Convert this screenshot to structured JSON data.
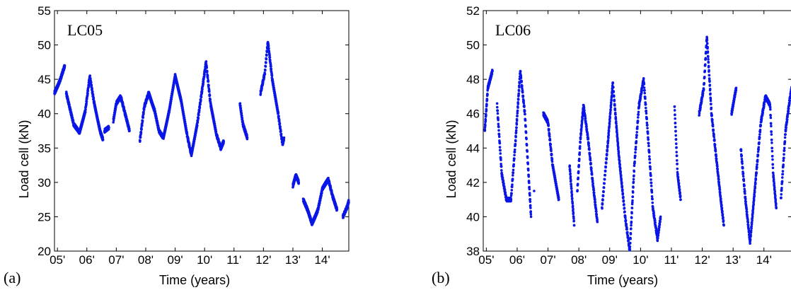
{
  "chart_data": [
    {
      "type": "scatter",
      "panel_label": "(a)",
      "series_label": "LC05",
      "xlabel": "Time (years)",
      "ylabel": "Load cell (kN)",
      "ylim": [
        20,
        55
      ],
      "xlim": [
        2004.9,
        2014.9
      ],
      "yticks": [
        20,
        25,
        30,
        35,
        40,
        45,
        50,
        55
      ],
      "xticks": [
        {
          "value": 2005,
          "label": "05'"
        },
        {
          "value": 2006,
          "label": "06'"
        },
        {
          "value": 2007,
          "label": "07'"
        },
        {
          "value": 2008,
          "label": "08'"
        },
        {
          "value": 2009,
          "label": "09'"
        },
        {
          "value": 2010,
          "label": "10'"
        },
        {
          "value": 2011,
          "label": "11'"
        },
        {
          "value": 2012,
          "label": "12'"
        },
        {
          "value": 2013,
          "label": "13'"
        },
        {
          "value": 2014,
          "label": "14'"
        }
      ],
      "grid": false,
      "color": "#0a16e6",
      "segments": [
        [
          [
            2004.9,
            43.0
          ],
          [
            2005.1,
            45.0
          ],
          [
            2005.25,
            47.0
          ]
        ],
        [
          [
            2005.3,
            43.0
          ],
          [
            2005.55,
            38.5
          ],
          [
            2005.75,
            37.2
          ],
          [
            2005.95,
            40.5
          ],
          [
            2006.1,
            45.5
          ],
          [
            2006.25,
            41.5
          ],
          [
            2006.45,
            37.5
          ],
          [
            2006.55,
            36.2
          ]
        ],
        [
          [
            2006.6,
            37.5
          ],
          [
            2006.75,
            38.0
          ]
        ],
        [
          [
            2006.9,
            39.0
          ],
          [
            2007.0,
            41.5
          ],
          [
            2007.15,
            42.5
          ],
          [
            2007.3,
            40.0
          ],
          [
            2007.45,
            37.5
          ]
        ],
        [
          [
            2007.8,
            36.0
          ],
          [
            2007.95,
            41.0
          ],
          [
            2008.1,
            43.0
          ],
          [
            2008.3,
            40.5
          ],
          [
            2008.45,
            37.5
          ],
          [
            2008.6,
            36.5
          ],
          [
            2008.8,
            40.5
          ],
          [
            2009.0,
            45.5
          ],
          [
            2009.2,
            42.0
          ],
          [
            2009.4,
            37.0
          ],
          [
            2009.55,
            34.0
          ],
          [
            2009.75,
            38.5
          ],
          [
            2009.9,
            43.0
          ],
          [
            2010.05,
            47.5
          ],
          [
            2010.2,
            41.5
          ],
          [
            2010.4,
            37.0
          ],
          [
            2010.55,
            35.0
          ],
          [
            2010.65,
            36.0
          ]
        ],
        [
          [
            2011.2,
            41.5
          ],
          [
            2011.3,
            38.5
          ],
          [
            2011.45,
            36.5
          ]
        ],
        [
          [
            2011.9,
            43.0
          ],
          [
            2012.05,
            46.0
          ],
          [
            2012.15,
            50.5
          ],
          [
            2012.3,
            45.0
          ],
          [
            2012.5,
            40.0
          ],
          [
            2012.65,
            35.5
          ],
          [
            2012.7,
            36.5
          ]
        ],
        [
          [
            2013.0,
            29.5
          ],
          [
            2013.1,
            31.0
          ],
          [
            2013.2,
            30.0
          ]
        ],
        [
          [
            2013.35,
            27.5
          ],
          [
            2013.5,
            26.0
          ],
          [
            2013.65,
            24.0
          ],
          [
            2013.85,
            26.0
          ],
          [
            2014.0,
            29.0
          ],
          [
            2014.2,
            30.5
          ],
          [
            2014.35,
            28.0
          ],
          [
            2014.5,
            26.0
          ]
        ],
        [
          [
            2014.7,
            25.0
          ],
          [
            2014.85,
            26.5
          ],
          [
            2014.95,
            28.0
          ]
        ]
      ]
    },
    {
      "type": "scatter",
      "panel_label": "(b)",
      "series_label": "LC06",
      "xlabel": "Time (years)",
      "ylabel": "Load cell (kN)",
      "ylim": [
        38,
        52
      ],
      "xlim": [
        2004.9,
        2014.9
      ],
      "yticks": [
        38,
        40,
        42,
        44,
        46,
        48,
        50,
        52
      ],
      "xticks": [
        {
          "value": 2005,
          "label": "05'"
        },
        {
          "value": 2006,
          "label": "06'"
        },
        {
          "value": 2007,
          "label": "07'"
        },
        {
          "value": 2008,
          "label": "08'"
        },
        {
          "value": 2009,
          "label": "09'"
        },
        {
          "value": 2010,
          "label": "10'"
        },
        {
          "value": 2011,
          "label": "11'"
        },
        {
          "value": 2012,
          "label": "12'"
        },
        {
          "value": 2013,
          "label": "13'"
        },
        {
          "value": 2014,
          "label": "14'"
        }
      ],
      "grid": false,
      "color": "#0a16e6",
      "segments": [
        [
          [
            2004.95,
            45.0
          ],
          [
            2005.05,
            47.5
          ],
          [
            2005.2,
            48.5
          ]
        ],
        [
          [
            2005.35,
            46.5
          ],
          [
            2005.5,
            42.5
          ],
          [
            2005.65,
            41.0
          ],
          [
            2005.8,
            41.0
          ],
          [
            2005.95,
            44.5
          ],
          [
            2006.1,
            48.5
          ],
          [
            2006.25,
            46.0
          ],
          [
            2006.45,
            40.0
          ]
        ],
        [
          [
            2006.55,
            41.5
          ]
        ],
        [
          [
            2006.85,
            46.0
          ],
          [
            2007.0,
            45.5
          ],
          [
            2007.15,
            43.0
          ],
          [
            2007.35,
            41.0
          ]
        ],
        [
          [
            2007.7,
            43.0
          ],
          [
            2007.85,
            39.5
          ]
        ],
        [
          [
            2007.95,
            41.5
          ],
          [
            2008.05,
            44.5
          ],
          [
            2008.15,
            46.5
          ],
          [
            2008.3,
            44.5
          ],
          [
            2008.45,
            42.0
          ],
          [
            2008.6,
            39.7
          ]
        ],
        [
          [
            2008.75,
            40.5
          ],
          [
            2008.95,
            44.5
          ],
          [
            2009.1,
            47.8
          ],
          [
            2009.3,
            43.5
          ],
          [
            2009.5,
            40.0
          ],
          [
            2009.65,
            38.0
          ],
          [
            2009.8,
            43.0
          ],
          [
            2009.95,
            46.5
          ],
          [
            2010.1,
            48.0
          ],
          [
            2010.25,
            44.5
          ],
          [
            2010.4,
            40.5
          ],
          [
            2010.55,
            38.7
          ],
          [
            2010.65,
            40.0
          ]
        ],
        [
          [
            2011.1,
            46.5
          ],
          [
            2011.2,
            42.5
          ],
          [
            2011.3,
            41.0
          ]
        ],
        [
          [
            2011.9,
            46.0
          ],
          [
            2012.05,
            47.5
          ],
          [
            2012.15,
            50.5
          ],
          [
            2012.3,
            46.0
          ],
          [
            2012.45,
            43.5
          ],
          [
            2012.6,
            41.0
          ],
          [
            2012.7,
            39.5
          ]
        ],
        [
          [
            2012.95,
            46.0
          ],
          [
            2013.05,
            47.0
          ],
          [
            2013.1,
            47.5
          ]
        ],
        [
          [
            2013.25,
            44.0
          ],
          [
            2013.4,
            41.0
          ],
          [
            2013.55,
            38.5
          ],
          [
            2013.75,
            42.5
          ],
          [
            2013.9,
            45.5
          ],
          [
            2014.05,
            47.0
          ],
          [
            2014.2,
            46.5
          ],
          [
            2014.3,
            42.5
          ],
          [
            2014.4,
            40.5
          ]
        ],
        [
          [
            2014.55,
            41.0
          ],
          [
            2014.7,
            45.0
          ],
          [
            2014.85,
            47.0
          ],
          [
            2014.95,
            48.0
          ]
        ]
      ]
    }
  ]
}
